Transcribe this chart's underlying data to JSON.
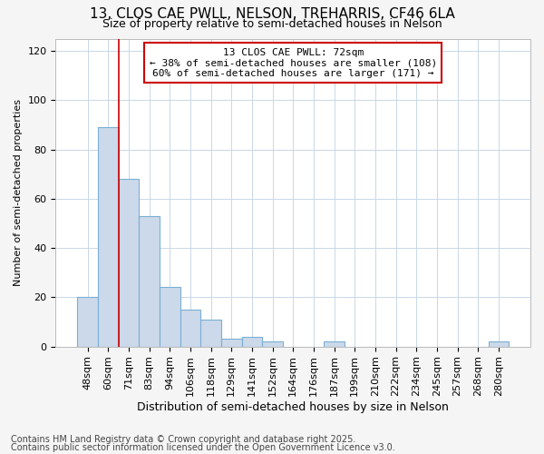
{
  "title_line1": "13, CLOS CAE PWLL, NELSON, TREHARRIS, CF46 6LA",
  "title_line2": "Size of property relative to semi-detached houses in Nelson",
  "xlabel": "Distribution of semi-detached houses by size in Nelson",
  "ylabel": "Number of semi-detached properties",
  "categories": [
    "48sqm",
    "60sqm",
    "71sqm",
    "83sqm",
    "94sqm",
    "106sqm",
    "118sqm",
    "129sqm",
    "141sqm",
    "152sqm",
    "164sqm",
    "176sqm",
    "187sqm",
    "199sqm",
    "210sqm",
    "222sqm",
    "234sqm",
    "245sqm",
    "257sqm",
    "268sqm",
    "280sqm"
  ],
  "values": [
    20,
    89,
    68,
    53,
    24,
    15,
    11,
    3,
    4,
    2,
    0,
    0,
    2,
    0,
    0,
    0,
    0,
    0,
    0,
    0,
    2
  ],
  "bar_color": "#ccd9ea",
  "bar_edge_color": "#7aafd4",
  "vline_index": 2,
  "vline_color": "#cc0000",
  "annotation_box_text": "13 CLOS CAE PWLL: 72sqm\n← 38% of semi-detached houses are smaller (108)\n60% of semi-detached houses are larger (171) →",
  "annotation_box_edge_color": "#cc0000",
  "ylim": [
    0,
    125
  ],
  "yticks": [
    0,
    20,
    40,
    60,
    80,
    100,
    120
  ],
  "footer_line1": "Contains HM Land Registry data © Crown copyright and database right 2025.",
  "footer_line2": "Contains public sector information licensed under the Open Government Licence v3.0.",
  "bg_color": "#f5f5f5",
  "plot_bg_color": "#ffffff",
  "grid_color": "#c8d8e8",
  "title_fontsize": 11,
  "subtitle_fontsize": 9,
  "xlabel_fontsize": 9,
  "ylabel_fontsize": 8,
  "tick_fontsize": 8,
  "annot_fontsize": 8,
  "footer_fontsize": 7
}
